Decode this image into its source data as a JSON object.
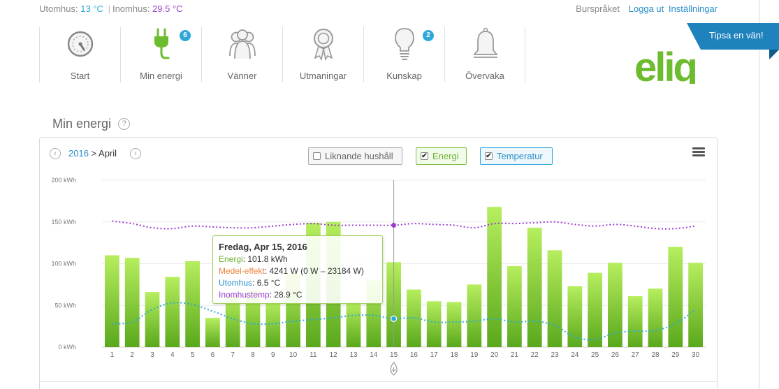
{
  "header": {
    "outdoor_label": "Utomhus:",
    "outdoor_value": "13 °C",
    "indoor_label": "Inomhus:",
    "indoor_value": "29.5 °C",
    "separator": "|",
    "language": "Burspråket",
    "logout": "Logga ut",
    "settings": "Inställningar"
  },
  "nav": {
    "items": [
      {
        "label": "Start",
        "icon": "gauge-icon",
        "badge": ""
      },
      {
        "label": "Min energi",
        "icon": "plug-icon",
        "badge": "6"
      },
      {
        "label": "Vänner",
        "icon": "friends-icon",
        "badge": ""
      },
      {
        "label": "Utmaningar",
        "icon": "award-icon",
        "badge": ""
      },
      {
        "label": "Kunskap",
        "icon": "lightbulb-icon",
        "badge": "2"
      },
      {
        "label": "Övervaka",
        "icon": "bell-icon",
        "badge": ""
      }
    ]
  },
  "tipsa": "Tipsa en vän!",
  "logo": "eliq",
  "section": {
    "title": "Min energi",
    "help": "?"
  },
  "period": {
    "year": "2016",
    "separator": ">",
    "month": "April",
    "prev": "‹",
    "next": "›"
  },
  "toggles": {
    "similar": "Liknande hushåll",
    "energy": "Energi",
    "temperature": "Temperatur",
    "check": "✔"
  },
  "colors": {
    "energy": "#7cc23a",
    "outdoor": "#2ea8d8",
    "indoor": "#9b3fd1",
    "accent_blue": "#2a8fc7",
    "logo_green": "#6dbb2e"
  },
  "tooltip": {
    "title": "Fredag, Apr 15, 2016",
    "energy_label": "Energi",
    "energy_value": "101.8 kWh",
    "power_label": "Medel-effekt",
    "power_value": "4241 W (0 W – 23184 W)",
    "outdoor_label": "Utomhus",
    "outdoor_value": "6.5 °C",
    "indoor_label": "Inomhustemp",
    "indoor_value": "28.9 °C"
  },
  "chart_data": {
    "type": "bar",
    "x": [
      1,
      2,
      3,
      4,
      5,
      6,
      7,
      8,
      9,
      10,
      11,
      12,
      13,
      14,
      15,
      16,
      17,
      18,
      19,
      20,
      21,
      22,
      23,
      24,
      25,
      26,
      27,
      28,
      29,
      30
    ],
    "y_ticks": [
      "0 kWh",
      "50 kWh",
      "100 kWh",
      "150 kWh",
      "200 kWh"
    ],
    "ylim": [
      0,
      200
    ],
    "highlight_day": 15,
    "series": [
      {
        "name": "Energi",
        "type": "bar",
        "values": [
          110,
          107,
          66,
          84,
          103,
          35,
          62,
          68,
          55,
          88,
          149,
          150,
          54,
          80,
          101.8,
          69,
          55,
          54,
          75,
          168,
          97,
          143,
          116,
          73,
          89,
          101,
          61,
          70,
          120,
          101
        ]
      },
      {
        "name": "Utomhus",
        "type": "line",
        "values": [
          28,
          30,
          45,
          53,
          51,
          43,
          34,
          28,
          28,
          31,
          33,
          35,
          38,
          38,
          34,
          35,
          30,
          30,
          31,
          34,
          30,
          31,
          26,
          12,
          9,
          17,
          19,
          20,
          28,
          45
        ]
      },
      {
        "name": "Inomhustemp",
        "type": "line",
        "values": [
          151,
          148,
          143,
          142,
          145,
          144,
          143,
          143,
          145,
          147,
          148,
          146,
          146,
          146,
          146,
          148,
          147,
          146,
          143,
          148,
          148,
          149,
          150,
          147,
          145,
          147,
          145,
          142,
          142,
          145
        ]
      }
    ]
  }
}
